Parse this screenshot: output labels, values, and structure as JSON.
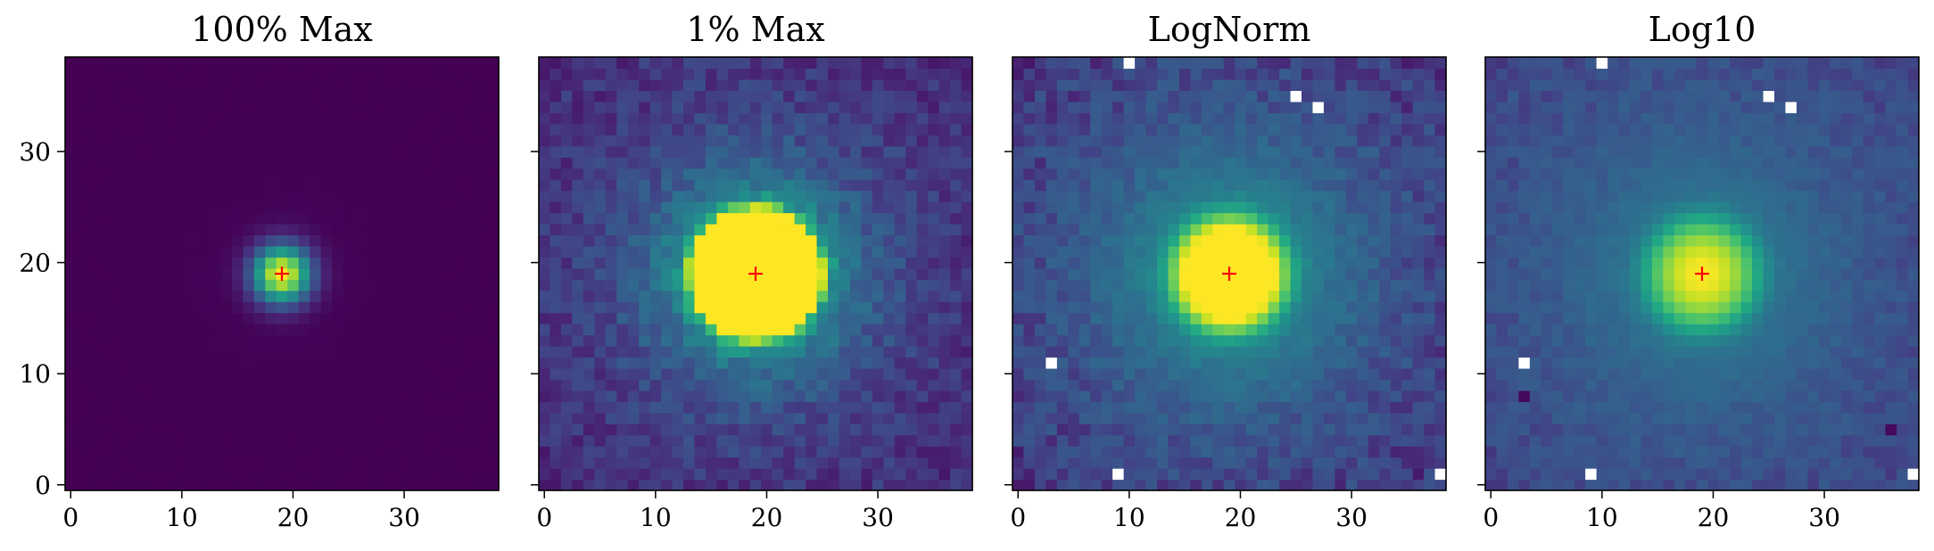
{
  "chart_data": [
    {
      "type": "heatmap",
      "title": "100% Max",
      "normalization": "linear",
      "vmax_fraction_of_peak": 1.0,
      "image_size": [
        39,
        39
      ],
      "xlim": [
        -0.5,
        38.5
      ],
      "ylim": [
        -0.5,
        38.5
      ],
      "xticks": [
        0,
        10,
        20,
        30
      ],
      "yticks": [
        0,
        10,
        20,
        30
      ],
      "colormap": "viridis",
      "marker": {
        "symbol": "+",
        "x": 19,
        "y": 19,
        "color": "#ff0000"
      },
      "source_profile": {
        "center": [
          19,
          19
        ],
        "sigma": 1.8
      },
      "saturated_pixels": [],
      "yticklabels_shown": true
    },
    {
      "type": "heatmap",
      "title": "1% Max",
      "normalization": "linear",
      "vmax_fraction_of_peak": 0.01,
      "image_size": [
        39,
        39
      ],
      "xlim": [
        -0.5,
        38.5
      ],
      "ylim": [
        -0.5,
        38.5
      ],
      "xticks": [
        0,
        10,
        20,
        30
      ],
      "yticks": [
        0,
        10,
        20,
        30
      ],
      "colormap": "viridis",
      "marker": {
        "symbol": "+",
        "x": 19,
        "y": 19,
        "color": "#ff0000"
      },
      "source_profile": {
        "center": [
          19,
          19
        ],
        "sigma": 1.8
      },
      "saturated_pixels": [],
      "yticklabels_shown": false
    },
    {
      "type": "heatmap",
      "title": "LogNorm",
      "normalization": "log",
      "image_size": [
        39,
        39
      ],
      "xlim": [
        -0.5,
        38.5
      ],
      "ylim": [
        -0.5,
        38.5
      ],
      "xticks": [
        0,
        10,
        20,
        30
      ],
      "yticks": [
        0,
        10,
        20,
        30
      ],
      "colormap": "viridis",
      "marker": {
        "symbol": "+",
        "x": 19,
        "y": 19,
        "color": "#ff0000"
      },
      "source_profile": {
        "center": [
          19,
          19
        ],
        "sigma": 1.8
      },
      "masked_pixels": [
        [
          10,
          38
        ],
        [
          25,
          35
        ],
        [
          27,
          34
        ],
        [
          3,
          11
        ],
        [
          9,
          1
        ],
        [
          38,
          1
        ]
      ],
      "yticklabels_shown": false
    },
    {
      "type": "heatmap",
      "title": "Log10",
      "normalization": "log10",
      "image_size": [
        39,
        39
      ],
      "xlim": [
        -0.5,
        38.5
      ],
      "ylim": [
        -0.5,
        38.5
      ],
      "xticks": [
        0,
        10,
        20,
        30
      ],
      "yticks": [
        0,
        10,
        20,
        30
      ],
      "colormap": "viridis",
      "marker": {
        "symbol": "+",
        "x": 19,
        "y": 19,
        "color": "#ff0000"
      },
      "source_profile": {
        "center": [
          19,
          19
        ],
        "sigma": 1.8
      },
      "masked_pixels": [
        [
          10,
          38
        ],
        [
          25,
          35
        ],
        [
          27,
          34
        ],
        [
          3,
          11
        ],
        [
          9,
          1
        ],
        [
          38,
          1
        ]
      ],
      "dark_pixels": [
        [
          3,
          8
        ],
        [
          36,
          5
        ]
      ],
      "yticklabels_shown": false
    }
  ]
}
